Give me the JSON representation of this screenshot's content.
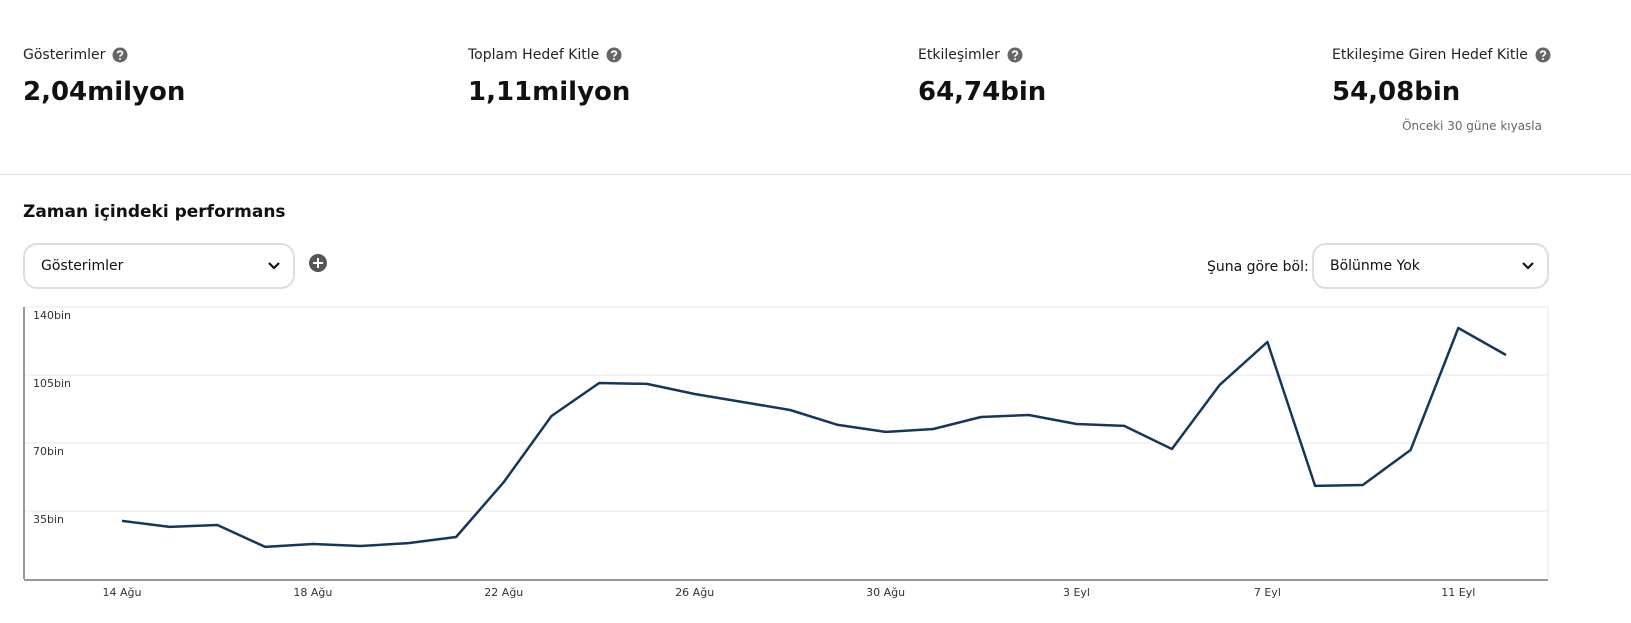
{
  "metrics": [
    {
      "label": "Gösterimler",
      "value": "2,04milyon"
    },
    {
      "label": "Toplam Hedef Kitle",
      "value": "1,11milyon"
    },
    {
      "label": "Etkileşimler",
      "value": "64,74bin"
    },
    {
      "label": "Etkileşime Giren Hedef Kitle",
      "value": "54,08bin"
    }
  ],
  "comparison_note": "Önceki 30 güne kıyasla",
  "section_title": "Zaman içindeki performans",
  "metric_dropdown": "Gösterimler",
  "split_label": "Şuna göre böl:",
  "split_dropdown": "Bölünme Yok",
  "chart_data": {
    "type": "line",
    "categories": [
      "14 Ağu",
      null,
      null,
      null,
      "18 Ağu",
      null,
      null,
      null,
      "22 Ağu",
      null,
      null,
      null,
      "26 Ağu",
      null,
      null,
      null,
      "30 Ağu",
      null,
      null,
      null,
      "3 Eyl",
      null,
      null,
      null,
      "7 Eyl",
      null,
      null,
      null,
      "11 Eyl",
      null
    ],
    "values": [
      29.9,
      26.8,
      27.8,
      16.5,
      18.0,
      17.0,
      18.5,
      21.6,
      49.9,
      83.9,
      100.9,
      100.4,
      95.2,
      91.1,
      87.0,
      79.3,
      75.7,
      77.2,
      83.4,
      84.4,
      79.8,
      78.8,
      66.9,
      99.9,
      122.0,
      47.9,
      48.4,
      66.4,
      129.2,
      115.3
    ],
    "color": "#15375a",
    "ylim": [
      0,
      140
    ],
    "yticks": [
      {
        "value": 35,
        "label": "35bin"
      },
      {
        "value": 70,
        "label": "70bin"
      },
      {
        "value": 105,
        "label": "105bin"
      },
      {
        "value": 140,
        "label": "140bin"
      }
    ],
    "grid": true
  }
}
